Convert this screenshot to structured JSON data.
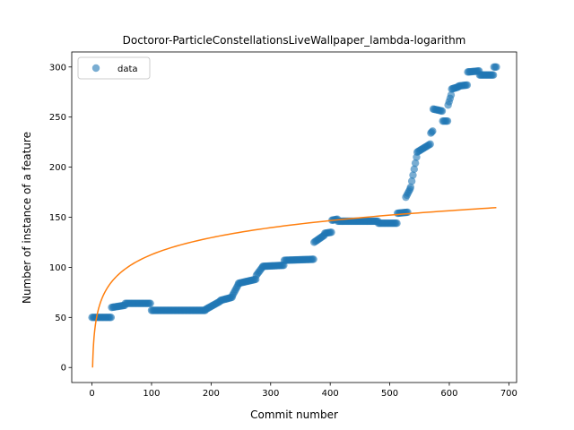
{
  "chart_data": {
    "type": "scatter",
    "title": "Doctoror-ParticleConstellationsLiveWallpaper_lambda-logarithm",
    "xlabel": "Commit number",
    "ylabel": "Number of instance of a feature",
    "xlim": [
      -34,
      713
    ],
    "ylim": [
      -15,
      315
    ],
    "xticks": [
      0,
      100,
      200,
      300,
      400,
      500,
      600,
      700
    ],
    "yticks": [
      0,
      50,
      100,
      150,
      200,
      250,
      300
    ],
    "grid": false,
    "legend": {
      "placement": "top-left",
      "entries": [
        "data"
      ]
    },
    "series": [
      {
        "name": "data",
        "kind": "scatter",
        "color": "#1f77b4",
        "segments": [
          {
            "x0": 0,
            "x1": 32,
            "y0": 50,
            "y1": 50,
            "step": 2
          },
          {
            "x0": 33,
            "x1": 55,
            "y0": 60,
            "y1": 62,
            "step": 2
          },
          {
            "x0": 56,
            "x1": 98,
            "y0": 64,
            "y1": 64,
            "step": 2
          },
          {
            "x0": 100,
            "x1": 190,
            "y0": 57,
            "y1": 57,
            "step": 2
          },
          {
            "x0": 191,
            "x1": 215,
            "y0": 58,
            "y1": 66,
            "step": 2
          },
          {
            "x0": 216,
            "x1": 235,
            "y0": 67,
            "y1": 70,
            "step": 2
          },
          {
            "x0": 236,
            "x1": 245,
            "y0": 72,
            "y1": 82,
            "step": 2
          },
          {
            "x0": 246,
            "x1": 275,
            "y0": 84,
            "y1": 88,
            "step": 2
          },
          {
            "x0": 276,
            "x1": 286,
            "y0": 92,
            "y1": 100,
            "step": 2
          },
          {
            "x0": 287,
            "x1": 322,
            "y0": 101,
            "y1": 102,
            "step": 2
          },
          {
            "x0": 323,
            "x1": 372,
            "y0": 107,
            "y1": 108,
            "step": 2
          },
          {
            "x0": 373,
            "x1": 390,
            "y0": 125,
            "y1": 132,
            "step": 2
          },
          {
            "x0": 391,
            "x1": 402,
            "y0": 134,
            "y1": 135,
            "step": 2
          },
          {
            "x0": 403,
            "x1": 412,
            "y0": 147,
            "y1": 148,
            "step": 2
          },
          {
            "x0": 413,
            "x1": 480,
            "y0": 146,
            "y1": 146,
            "step": 2
          },
          {
            "x0": 481,
            "x1": 512,
            "y0": 144,
            "y1": 144,
            "step": 2
          },
          {
            "x0": 513,
            "x1": 530,
            "y0": 154,
            "y1": 155,
            "step": 2
          },
          {
            "x0": 527,
            "x1": 534,
            "y0": 170,
            "y1": 178,
            "step": 2
          },
          {
            "x0": 535,
            "x1": 545,
            "y0": 180,
            "y1": 210,
            "step": 2
          },
          {
            "x0": 546,
            "x1": 568,
            "y0": 215,
            "y1": 223,
            "step": 2
          },
          {
            "x0": 569,
            "x1": 572,
            "y0": 234,
            "y1": 236,
            "step": 2
          },
          {
            "x0": 573,
            "x1": 588,
            "y0": 258,
            "y1": 256,
            "step": 2
          },
          {
            "x0": 589,
            "x1": 597,
            "y0": 246,
            "y1": 246,
            "step": 2
          },
          {
            "x0": 598,
            "x1": 603,
            "y0": 262,
            "y1": 272,
            "step": 2
          },
          {
            "x0": 604,
            "x1": 615,
            "y0": 278,
            "y1": 280,
            "step": 2
          },
          {
            "x0": 616,
            "x1": 630,
            "y0": 281,
            "y1": 282,
            "step": 2
          },
          {
            "x0": 631,
            "x1": 650,
            "y0": 295,
            "y1": 296,
            "step": 2
          },
          {
            "x0": 651,
            "x1": 674,
            "y0": 292,
            "y1": 292,
            "step": 2
          },
          {
            "x0": 675,
            "x1": 679,
            "y0": 300,
            "y1": 300,
            "step": 2
          }
        ]
      },
      {
        "kind": "line",
        "color": "#ff7f0e",
        "model": "logarithm",
        "x_range": [
          1,
          679
        ],
        "x_samples": [
          1,
          2,
          5,
          10,
          20,
          50,
          100,
          200,
          300,
          400,
          500,
          600,
          679
        ],
        "values": [
          0,
          16.9,
          39.3,
          56.3,
          73.3,
          95.7,
          112.7,
          129.6,
          139.6,
          146.6,
          152.1,
          156.5,
          159.6
        ]
      }
    ]
  }
}
